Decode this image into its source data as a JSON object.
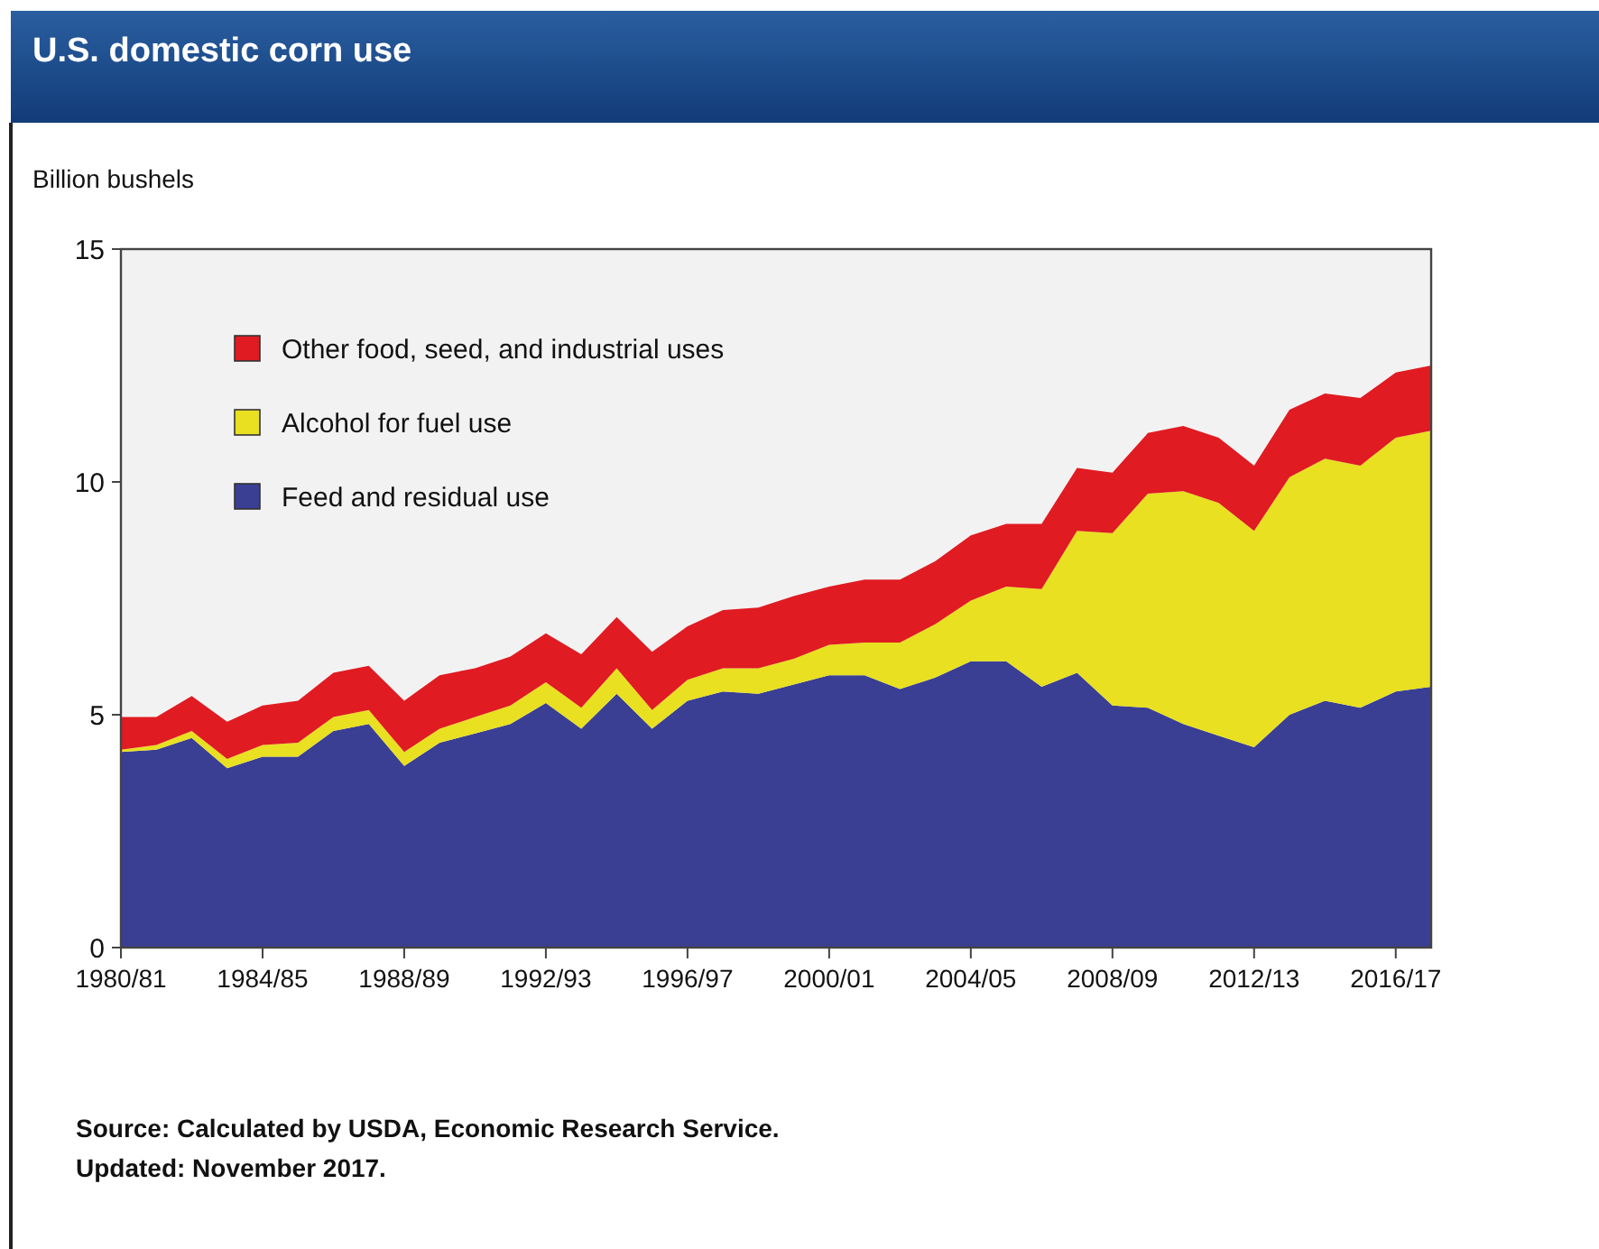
{
  "chart_data": {
    "type": "area",
    "stacked": true,
    "title": "U.S. domestic corn use",
    "ylabel": "Billion bushels",
    "categories": [
      "1980/81",
      null,
      null,
      null,
      "1984/85",
      null,
      null,
      null,
      "1988/89",
      null,
      null,
      null,
      "1992/93",
      null,
      null,
      null,
      "1996/97",
      null,
      null,
      null,
      "2000/01",
      null,
      null,
      null,
      "2004/05",
      null,
      null,
      null,
      "2008/09",
      null,
      null,
      null,
      "2012/13",
      null,
      null,
      null,
      "2016/17",
      null
    ],
    "ylim": [
      0,
      15
    ],
    "yticks": [
      0,
      5,
      10,
      15
    ],
    "grid": false,
    "legend": "top left",
    "series": [
      {
        "name": "Feed and residual use",
        "color": "#3a3f94",
        "values": [
          4.2,
          4.25,
          4.5,
          3.85,
          4.1,
          4.1,
          4.65,
          4.8,
          3.9,
          4.4,
          4.6,
          4.8,
          5.25,
          4.7,
          5.45,
          4.7,
          5.3,
          5.5,
          5.45,
          5.65,
          5.85,
          5.85,
          5.55,
          5.8,
          6.15,
          6.15,
          5.6,
          5.9,
          5.2,
          5.15,
          4.8,
          4.55,
          4.3,
          5.0,
          5.3,
          5.15,
          5.5,
          5.6
        ]
      },
      {
        "name": "Alcohol for fuel use",
        "color": "#e8e020",
        "values": [
          0.05,
          0.1,
          0.15,
          0.2,
          0.25,
          0.3,
          0.3,
          0.3,
          0.3,
          0.3,
          0.35,
          0.4,
          0.45,
          0.45,
          0.55,
          0.4,
          0.45,
          0.5,
          0.55,
          0.55,
          0.65,
          0.7,
          1.0,
          1.15,
          1.3,
          1.6,
          2.1,
          3.05,
          3.7,
          4.6,
          5.0,
          5.0,
          4.65,
          5.1,
          5.2,
          5.2,
          5.45,
          5.5
        ]
      },
      {
        "name": "Other food, seed, and industrial uses",
        "color": "#e01b22",
        "values": [
          0.7,
          0.6,
          0.75,
          0.8,
          0.85,
          0.9,
          0.95,
          0.95,
          1.1,
          1.15,
          1.05,
          1.05,
          1.05,
          1.15,
          1.1,
          1.25,
          1.15,
          1.25,
          1.3,
          1.35,
          1.25,
          1.35,
          1.35,
          1.35,
          1.4,
          1.35,
          1.4,
          1.35,
          1.3,
          1.3,
          1.4,
          1.4,
          1.4,
          1.45,
          1.4,
          1.45,
          1.4,
          1.4
        ]
      }
    ],
    "annotations": [
      "Source: Calculated by USDA, Economic Research Service.",
      "Updated: November 2017."
    ]
  }
}
